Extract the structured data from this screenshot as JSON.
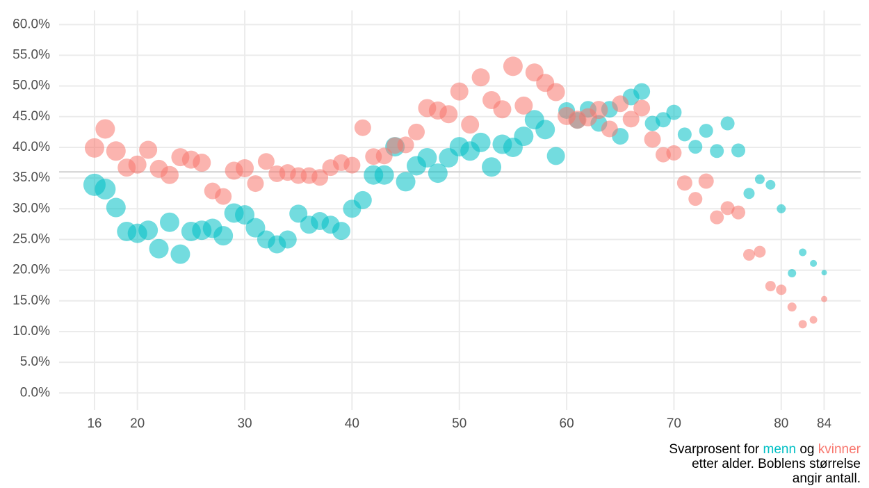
{
  "chart_data": {
    "type": "bubble",
    "x": [
      16,
      17,
      18,
      19,
      20,
      21,
      22,
      23,
      24,
      25,
      26,
      27,
      28,
      29,
      30,
      31,
      32,
      33,
      34,
      35,
      36,
      37,
      38,
      39,
      40,
      41,
      42,
      43,
      44,
      45,
      46,
      47,
      48,
      49,
      50,
      51,
      52,
      53,
      54,
      55,
      56,
      57,
      58,
      59,
      60,
      61,
      62,
      63,
      64,
      65,
      66,
      67,
      68,
      69,
      70,
      71,
      72,
      73,
      74,
      75,
      76,
      77,
      78,
      79,
      80,
      81,
      82,
      83,
      84
    ],
    "series": [
      {
        "name": "menn",
        "color": "#00BFC4",
        "opacity": 0.55,
        "values": [
          33.9,
          33.2,
          30.2,
          26.3,
          26.0,
          26.5,
          23.5,
          27.8,
          22.6,
          26.3,
          26.5,
          26.8,
          25.6,
          29.3,
          29.0,
          26.9,
          25.0,
          24.2,
          25.0,
          29.2,
          27.4,
          28.0,
          27.4,
          26.4,
          30.0,
          31.4,
          35.5,
          35.5,
          40.1,
          34.4,
          37.0,
          38.3,
          35.8,
          38.3,
          40.1,
          39.4,
          40.8,
          36.8,
          40.5,
          40.0,
          41.8,
          44.5,
          42.9,
          38.6,
          46.0,
          44.4,
          46.2,
          43.9,
          46.2,
          41.8,
          48.2,
          49.1,
          43.9,
          44.5,
          45.7,
          42.1,
          40.1,
          42.7,
          39.4,
          43.9,
          39.5,
          32.5,
          34.8,
          33.9,
          30.0,
          19.5,
          22.9,
          21.1,
          19.6
        ],
        "sizes": [
          256,
          225,
          196,
          196,
          196,
          196,
          196,
          196,
          196,
          196,
          196,
          196,
          196,
          196,
          196,
          196,
          169,
          169,
          169,
          169,
          169,
          169,
          169,
          169,
          169,
          169,
          196,
          196,
          196,
          196,
          196,
          196,
          196,
          196,
          196,
          196,
          196,
          196,
          196,
          196,
          196,
          196,
          196,
          169,
          144,
          144,
          144,
          144,
          144,
          144,
          144,
          144,
          121,
          121,
          121,
          100,
          100,
          100,
          100,
          100,
          100,
          64,
          49,
          49,
          42,
          36,
          30,
          25,
          16
        ]
      },
      {
        "name": "kvinner",
        "color": "#F8766D",
        "opacity": 0.55,
        "values": [
          39.9,
          43.0,
          39.4,
          36.7,
          37.2,
          39.6,
          36.5,
          35.5,
          38.4,
          38.0,
          37.5,
          32.9,
          32.0,
          36.2,
          36.6,
          34.1,
          37.7,
          35.7,
          35.9,
          35.4,
          35.4,
          35.1,
          36.7,
          37.5,
          37.1,
          43.2,
          38.5,
          38.6,
          40.3,
          40.4,
          42.5,
          46.4,
          46.0,
          45.4,
          49.1,
          43.7,
          51.4,
          47.7,
          46.2,
          53.2,
          46.8,
          52.2,
          50.5,
          49.0,
          45.1,
          44.5,
          44.9,
          46.1,
          43.0,
          47.1,
          44.6,
          46.4,
          41.3,
          38.8,
          39.1,
          34.2,
          31.6,
          34.5,
          28.6,
          30.1,
          29.4,
          22.5,
          23.0,
          17.4,
          16.8,
          14.0,
          11.2,
          11.9,
          15.3
        ],
        "sizes": [
          196,
          196,
          196,
          169,
          169,
          169,
          169,
          169,
          169,
          169,
          169,
          144,
          144,
          169,
          169,
          144,
          144,
          144,
          144,
          144,
          144,
          144,
          144,
          144,
          144,
          144,
          144,
          144,
          144,
          144,
          144,
          169,
          169,
          169,
          169,
          169,
          169,
          169,
          169,
          196,
          169,
          169,
          169,
          169,
          169,
          169,
          169,
          169,
          144,
          144,
          144,
          144,
          144,
          121,
          121,
          121,
          100,
          121,
          100,
          100,
          100,
          72,
          72,
          56,
          56,
          42,
          36,
          30,
          20
        ]
      }
    ],
    "reference_line": 36.0,
    "xlim": [
      12.7,
      87.4
    ],
    "ylim": [
      -2.8,
      62.3
    ],
    "xticks": [
      16,
      20,
      30,
      40,
      50,
      60,
      70,
      80,
      84
    ],
    "yticks": [
      {
        "value": 0,
        "label": "0.0%"
      },
      {
        "value": 5,
        "label": "5.0%"
      },
      {
        "value": 10,
        "label": "10.0%"
      },
      {
        "value": 15,
        "label": "15.0%"
      },
      {
        "value": 20,
        "label": "20.0%"
      },
      {
        "value": 25,
        "label": "25.0%"
      },
      {
        "value": 30,
        "label": "30.0%"
      },
      {
        "value": 35,
        "label": "35.0%"
      },
      {
        "value": 40,
        "label": "40.0%"
      },
      {
        "value": 45,
        "label": "45.0%"
      },
      {
        "value": 50,
        "label": "50.0%"
      },
      {
        "value": 55,
        "label": "55.0%"
      },
      {
        "value": 60,
        "label": "60.0%"
      }
    ],
    "grid": true,
    "caption": {
      "before": "Svarprosent for",
      "middle": "og",
      "line2": "etter alder. Boblens størrelse",
      "line3": "angir antall."
    }
  }
}
